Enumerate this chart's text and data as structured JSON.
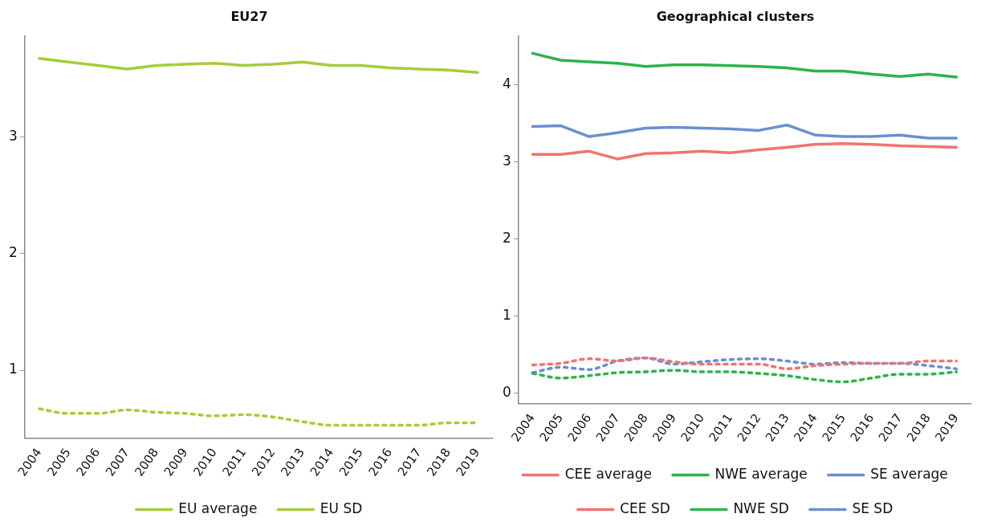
{
  "chart_data": [
    {
      "type": "line",
      "title": "EU27",
      "categories": [
        "2004",
        "2005",
        "2006",
        "2007",
        "2008",
        "2009",
        "2010",
        "2011",
        "2012",
        "2013",
        "2014",
        "2015",
        "2016",
        "2017",
        "2018",
        "2019"
      ],
      "ylim": [
        0.42,
        3.86
      ],
      "yticks": [
        1,
        2,
        3
      ],
      "grid": false,
      "legend": "bottom",
      "marker": "none",
      "series": [
        {
          "name": "EU average",
          "color": "#a5cd39",
          "line_style": "solid",
          "values": [
            3.67,
            3.64,
            3.61,
            3.58,
            3.61,
            3.62,
            3.63,
            3.61,
            3.62,
            3.64,
            3.61,
            3.61,
            3.59,
            3.58,
            3.57,
            3.55
          ]
        },
        {
          "name": "EU SD",
          "color": "#a5cd39",
          "line_style": "dashed",
          "values": [
            0.67,
            0.63,
            0.63,
            0.66,
            0.64,
            0.63,
            0.61,
            0.62,
            0.6,
            0.56,
            0.53,
            0.53,
            0.53,
            0.53,
            0.55,
            0.55
          ]
        }
      ]
    },
    {
      "type": "line",
      "title": "Geographical clusters",
      "categories": [
        "2004",
        "2005",
        "2006",
        "2007",
        "2008",
        "2009",
        "2010",
        "2011",
        "2012",
        "2013",
        "2014",
        "2015",
        "2016",
        "2017",
        "2018",
        "2019"
      ],
      "ylim": [
        -0.13,
        4.63
      ],
      "yticks": [
        0,
        1,
        2,
        3,
        4
      ],
      "grid": false,
      "legend": "bottom",
      "marker": "none",
      "series": [
        {
          "name": "CEE average",
          "color": "#f07470",
          "line_style": "solid",
          "values": [
            3.1,
            3.1,
            3.14,
            3.04,
            3.11,
            3.12,
            3.14,
            3.12,
            3.16,
            3.19,
            3.23,
            3.24,
            3.23,
            3.21,
            3.2,
            3.19
          ]
        },
        {
          "name": "NWE average",
          "color": "#2db34a",
          "line_style": "solid",
          "values": [
            4.41,
            4.32,
            4.3,
            4.28,
            4.24,
            4.26,
            4.26,
            4.25,
            4.24,
            4.22,
            4.18,
            4.18,
            4.14,
            4.11,
            4.14,
            4.1
          ]
        },
        {
          "name": "SE average",
          "color": "#6a8fd0",
          "line_style": "solid",
          "values": [
            3.46,
            3.47,
            3.33,
            3.38,
            3.44,
            3.45,
            3.44,
            3.43,
            3.41,
            3.48,
            3.35,
            3.33,
            3.33,
            3.35,
            3.31,
            3.31
          ]
        },
        {
          "name": "CEE SD",
          "color": "#f07470",
          "line_style": "dashed",
          "values": [
            0.37,
            0.39,
            0.45,
            0.42,
            0.46,
            0.41,
            0.38,
            0.38,
            0.38,
            0.32,
            0.36,
            0.38,
            0.39,
            0.39,
            0.42,
            0.42
          ]
        },
        {
          "name": "NWE SD",
          "color": "#2db34a",
          "line_style": "dashed",
          "values": [
            0.26,
            0.2,
            0.23,
            0.27,
            0.28,
            0.3,
            0.28,
            0.28,
            0.26,
            0.23,
            0.18,
            0.15,
            0.2,
            0.25,
            0.25,
            0.28
          ]
        },
        {
          "name": "SE SD",
          "color": "#6a8fd0",
          "line_style": "dashed",
          "values": [
            0.27,
            0.34,
            0.31,
            0.42,
            0.46,
            0.38,
            0.41,
            0.44,
            0.45,
            0.42,
            0.38,
            0.4,
            0.39,
            0.39,
            0.36,
            0.32
          ]
        }
      ]
    }
  ]
}
